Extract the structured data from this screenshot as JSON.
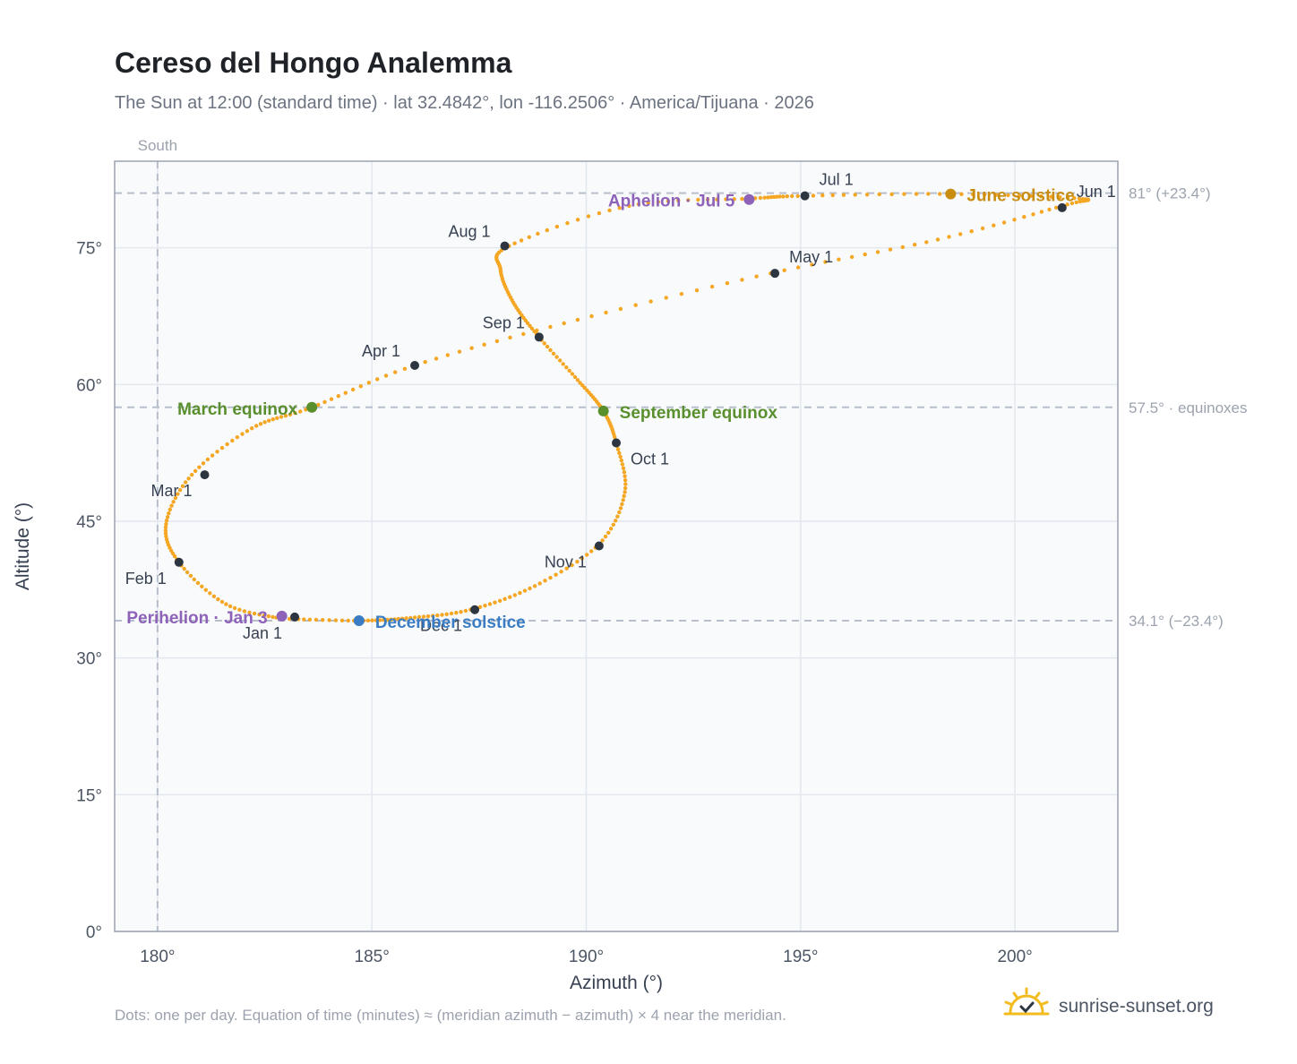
{
  "title": "Cereso del Hongo Analemma",
  "subtitle": "The Sun at 12:00 (standard time) · lat 32.4842°, lon -116.2506° · America/Tijuana · 2026",
  "footnote": "Dots: one per day. Equation of time (minutes) ≈ (meridian azimuth − azimuth) × 4 near the meridian.",
  "brand": {
    "name": "sunrise-sunset.org",
    "icon": "sun-logo-icon"
  },
  "colors": {
    "curve": "#f5a623",
    "month_dot": "#2d3540",
    "equinox": "#5a8f2e",
    "june_solstice": "#c98d12",
    "december_solstice": "#3b7dc4",
    "apsis": "#8e62b8",
    "grid": "#e3e8ee",
    "ref_line": "#b7bfcc",
    "plot_bg": "#f8fafc",
    "frame": "#9aa3b0"
  },
  "chart_data": {
    "type": "scatter",
    "xlabel": "Azimuth (°)",
    "ylabel": "Altitude (°)",
    "xlim": [
      179,
      202.4
    ],
    "ylim": [
      0,
      84.5
    ],
    "x_ticks": [
      180,
      185,
      190,
      195,
      200
    ],
    "x_tick_labels": [
      "180°",
      "185°",
      "190°",
      "195°",
      "200°"
    ],
    "y_ticks": [
      0,
      15,
      30,
      45,
      60,
      75
    ],
    "y_tick_labels": [
      "0°",
      "15°",
      "30°",
      "45°",
      "60°",
      "75°"
    ],
    "grid": true,
    "vertical_ref": {
      "x": 180,
      "label": "South"
    },
    "horizontal_refs": [
      {
        "y": 81.0,
        "label": "81° (+23.4°)"
      },
      {
        "y": 57.5,
        "label": "57.5° · equinoxes"
      },
      {
        "y": 34.1,
        "label": "34.1° (−23.4°)"
      }
    ],
    "daily_path": [
      {
        "date": "Jan 1",
        "az": 182.9,
        "alt": 34.3
      },
      {
        "date": "Jan 15",
        "az": 181.6,
        "alt": 35.9
      },
      {
        "date": "Feb 1",
        "az": 180.5,
        "alt": 40.5
      },
      {
        "date": "Feb 15",
        "az": 180.2,
        "alt": 44.7
      },
      {
        "date": "Mar 1",
        "az": 180.8,
        "alt": 50.1
      },
      {
        "date": "Mar 15",
        "az": 182.2,
        "alt": 55.2
      },
      {
        "date": "Mar 20",
        "az": 183.6,
        "alt": 57.5
      },
      {
        "date": "Apr 1",
        "az": 186.0,
        "alt": 62.1
      },
      {
        "date": "Apr 15",
        "az": 189.8,
        "alt": 67.1
      },
      {
        "date": "May 1",
        "az": 194.3,
        "alt": 72.2
      },
      {
        "date": "May 15",
        "az": 198.2,
        "alt": 75.9
      },
      {
        "date": "Jun 1",
        "az": 201.1,
        "alt": 79.6
      },
      {
        "date": "Jun 10",
        "az": 201.5,
        "alt": 80.4
      },
      {
        "date": "Jun 21",
        "az": 198.5,
        "alt": 80.9
      },
      {
        "date": "Jul 1",
        "az": 195.1,
        "alt": 80.7
      },
      {
        "date": "Jul 5",
        "az": 193.8,
        "alt": 80.4
      },
      {
        "date": "Jul 15",
        "az": 191.0,
        "alt": 79.6
      },
      {
        "date": "Aug 1",
        "az": 188.2,
        "alt": 75.2
      },
      {
        "date": "Aug 10",
        "az": 188.0,
        "alt": 72.6
      },
      {
        "date": "Aug 20",
        "az": 188.3,
        "alt": 69.0
      },
      {
        "date": "Sep 1",
        "az": 188.9,
        "alt": 65.2
      },
      {
        "date": "Sep 12",
        "az": 189.8,
        "alt": 60.5
      },
      {
        "date": "Sep 22",
        "az": 190.4,
        "alt": 57.1
      },
      {
        "date": "Oct 1",
        "az": 190.7,
        "alt": 53.6
      },
      {
        "date": "Oct 15",
        "az": 190.9,
        "alt": 48.2
      },
      {
        "date": "Nov 1",
        "az": 190.3,
        "alt": 42.5
      },
      {
        "date": "Nov 15",
        "az": 188.8,
        "alt": 37.9
      },
      {
        "date": "Dec 1",
        "az": 187.3,
        "alt": 35.3
      },
      {
        "date": "Dec 10",
        "az": 185.9,
        "alt": 34.4
      },
      {
        "date": "Dec 21",
        "az": 184.7,
        "alt": 34.1
      },
      {
        "date": "Dec 31",
        "az": 183.0,
        "alt": 34.3
      }
    ],
    "month_markers": [
      {
        "label": "Jan 1",
        "az": 183.2,
        "alt": 34.5,
        "anchor": "below-left"
      },
      {
        "label": "Feb 1",
        "az": 180.5,
        "alt": 40.5,
        "anchor": "below-left"
      },
      {
        "label": "Mar 1",
        "az": 181.1,
        "alt": 50.1,
        "anchor": "below-left"
      },
      {
        "label": "Apr 1",
        "az": 186.0,
        "alt": 62.1,
        "anchor": "above-left"
      },
      {
        "label": "May 1",
        "az": 194.4,
        "alt": 72.2,
        "anchor": "above-right"
      },
      {
        "label": "Jun 1",
        "az": 201.1,
        "alt": 79.4,
        "anchor": "above-right"
      },
      {
        "label": "Jul 1",
        "az": 195.1,
        "alt": 80.7,
        "anchor": "above-right"
      },
      {
        "label": "Aug 1",
        "az": 188.1,
        "alt": 75.2,
        "anchor": "above-left"
      },
      {
        "label": "Sep 1",
        "az": 188.9,
        "alt": 65.2,
        "anchor": "above-left"
      },
      {
        "label": "Oct 1",
        "az": 190.7,
        "alt": 53.6,
        "anchor": "below-right"
      },
      {
        "label": "Nov 1",
        "az": 190.3,
        "alt": 42.3,
        "anchor": "below-left"
      },
      {
        "label": "Dec 1",
        "az": 187.4,
        "alt": 35.3,
        "anchor": "below-left"
      }
    ],
    "events": [
      {
        "label": "March equinox",
        "az": 183.6,
        "alt": 57.5,
        "kind": "equinox",
        "anchor": "left"
      },
      {
        "label": "September equinox",
        "az": 190.4,
        "alt": 57.1,
        "kind": "equinox",
        "anchor": "right"
      },
      {
        "label": "June solstice",
        "az": 198.5,
        "alt": 80.9,
        "kind": "june_solstice",
        "anchor": "right"
      },
      {
        "label": "December solstice",
        "az": 184.7,
        "alt": 34.1,
        "kind": "december_solstice",
        "anchor": "right"
      },
      {
        "label": "Perihelion · Jan 3",
        "az": 182.9,
        "alt": 34.6,
        "kind": "apsis",
        "anchor": "left"
      },
      {
        "label": "Aphelion · Jul 5",
        "az": 193.8,
        "alt": 80.3,
        "kind": "apsis",
        "anchor": "left"
      }
    ]
  }
}
